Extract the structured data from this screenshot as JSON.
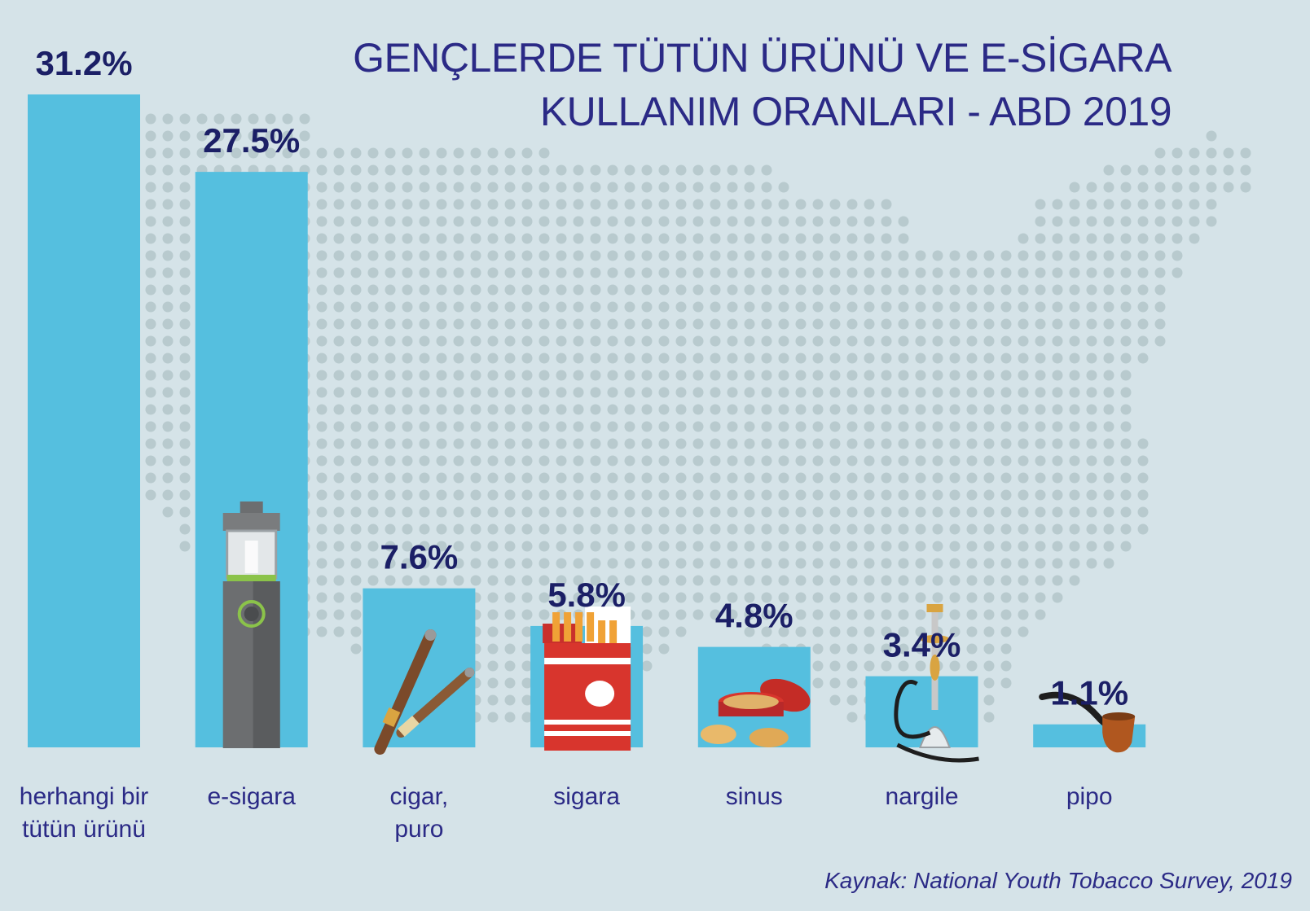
{
  "title": {
    "line1": "GENÇLERDE TÜTÜN ÜRÜNÜ VE E-SİGARA",
    "line2": "KULLANIM ORANLARI - ABD 2019"
  },
  "source": "Kaynak: National Youth Tobacco Survey, 2019",
  "colors": {
    "background": "#d5e3e8",
    "bar": "#55bfdf",
    "map_dots": "#b8cace",
    "title": "#2b2a86",
    "values": "#1b1f66"
  },
  "background_graphic": "dotted-usa-map",
  "chart_data": {
    "type": "bar",
    "categories": [
      "herhangi bir tütün ürünü",
      "e-sigara",
      "cigar, puro",
      "sigara",
      "sinus",
      "nargile",
      "pipo"
    ],
    "category_label_lines": [
      [
        "herhangi bir",
        "tütün ürünü"
      ],
      [
        "e-sigara"
      ],
      [
        "cigar,",
        "puro"
      ],
      [
        "sigara"
      ],
      [
        "sinus"
      ],
      [
        "nargile"
      ],
      [
        "pipo"
      ]
    ],
    "values": [
      31.2,
      27.5,
      7.6,
      5.8,
      4.8,
      3.4,
      1.1
    ],
    "value_labels": [
      "31.2%",
      "27.5%",
      "7.6%",
      "5.8%",
      "4.8%",
      "3.4%",
      "1.1%"
    ],
    "icons": [
      "",
      "e-cigarette-icon",
      "cigar-icon",
      "cigarette-pack-icon",
      "snus-tin-icon",
      "hookah-icon",
      "pipe-icon"
    ],
    "ylim": [
      0,
      31.2
    ],
    "grid": false,
    "legend": "none",
    "title": "",
    "xlabel": "",
    "ylabel": ""
  }
}
